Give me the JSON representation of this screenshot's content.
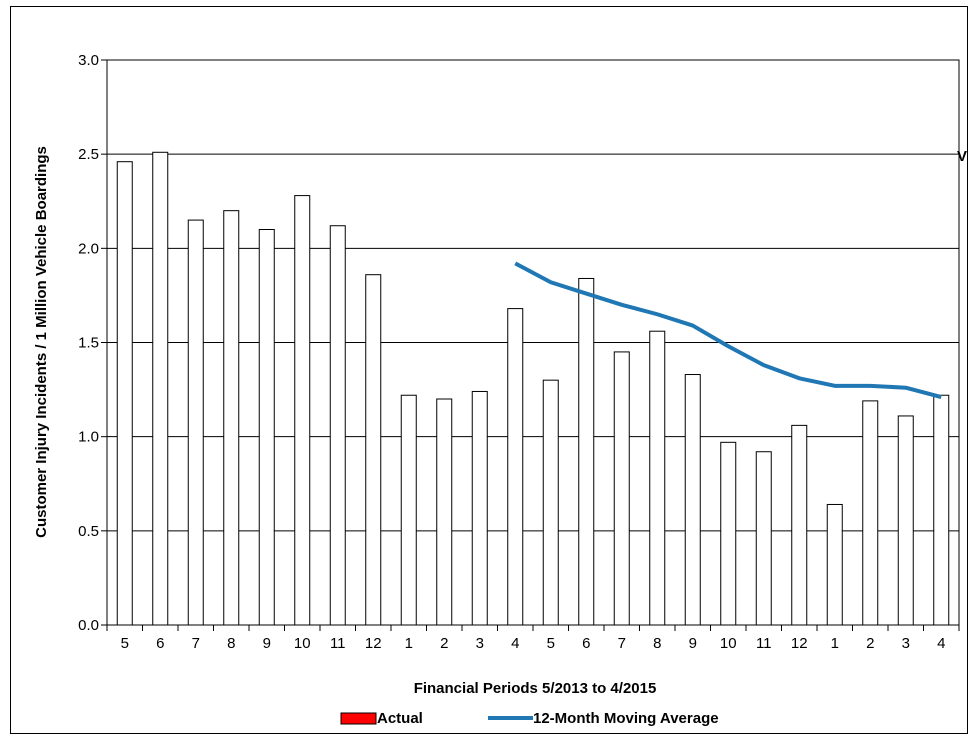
{
  "chart_data": {
    "type": "bar",
    "categories": [
      "5",
      "6",
      "7",
      "8",
      "9",
      "10",
      "11",
      "12",
      "1",
      "2",
      "3",
      "4",
      "5",
      "6",
      "7",
      "8",
      "9",
      "10",
      "11",
      "12",
      "1",
      "2",
      "3",
      "4"
    ],
    "series": [
      {
        "name": "Actual",
        "type": "bar",
        "values": [
          2.46,
          2.51,
          2.15,
          2.2,
          2.1,
          2.28,
          2.12,
          1.86,
          1.22,
          1.2,
          1.24,
          1.68,
          1.3,
          1.84,
          1.45,
          1.56,
          1.33,
          0.97,
          0.92,
          1.06,
          0.64,
          1.19,
          1.11,
          1.22
        ],
        "color": "#ffffff",
        "legend_color": "#ff0000"
      },
      {
        "name": "12-Month Moving Average",
        "type": "line",
        "values": [
          null,
          null,
          null,
          null,
          null,
          null,
          null,
          null,
          null,
          null,
          null,
          1.92,
          1.82,
          1.76,
          1.7,
          1.65,
          1.59,
          1.48,
          1.38,
          1.31,
          1.27,
          1.27,
          1.26,
          1.21
        ],
        "color": "#1f77b4"
      }
    ],
    "xlabel": "Financial Periods 5/2013 to 4/2015",
    "ylabel": "Customer Injury Incidents / 1 Million Vehicle Boardings",
    "ylim": [
      0,
      3.0
    ],
    "yticks": [
      "0.0",
      "0.5",
      "1.0",
      "1.5",
      "2.0",
      "2.5",
      "3.0"
    ],
    "grid": true,
    "legend_position": "bottom",
    "side_mark": "V"
  }
}
